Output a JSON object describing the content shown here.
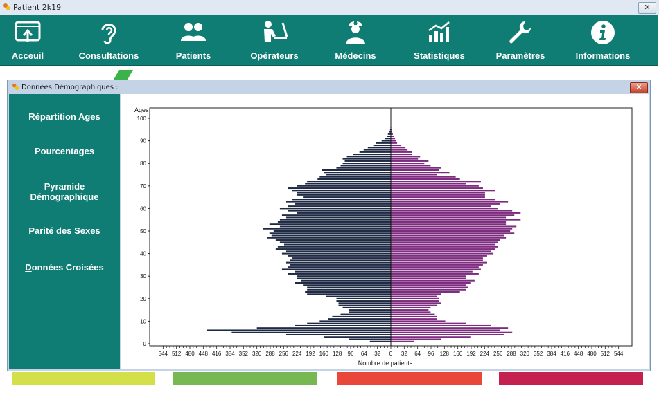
{
  "window": {
    "title": "Patient 2k19",
    "close_glyph": "✕"
  },
  "toolbar": {
    "items": [
      {
        "label": "Acceuil",
        "icon": "home-screen-icon"
      },
      {
        "label": "Consultations",
        "icon": "ear-icon"
      },
      {
        "label": "Patients",
        "icon": "users-icon"
      },
      {
        "label": "Opérateurs",
        "icon": "operator-desk-icon"
      },
      {
        "label": "Médecins",
        "icon": "doctor-icon"
      },
      {
        "label": "Statistiques",
        "icon": "chart-icon"
      },
      {
        "label": "Paramètres",
        "icon": "wrench-icon"
      },
      {
        "label": "Informations",
        "icon": "info-icon"
      }
    ]
  },
  "dialog": {
    "title": "Données Démographiques :",
    "close_glyph": "✕",
    "menu": [
      {
        "label": "Répartition Ages"
      },
      {
        "label": "Pourcentages"
      },
      {
        "label": "Pyramide Démographique"
      },
      {
        "label": "Parité des Sexes"
      },
      {
        "label": "Données Croisées",
        "underline_first": true
      }
    ]
  },
  "colors": {
    "teal": "#0f7d74",
    "male_bar": "#1f2a44",
    "female_bar": "#7d2c7f",
    "strips": [
      "#d4e04a",
      "#77b852",
      "#e8473a",
      "#c4214e"
    ]
  },
  "chart_data": {
    "type": "bar",
    "orientation": "horizontal-pyramid",
    "ylabel": "Âges",
    "xlabel": "Nombre de patients",
    "ylim": [
      0,
      105
    ],
    "y_ticks": [
      0,
      10,
      20,
      30,
      40,
      50,
      60,
      70,
      80,
      90,
      100
    ],
    "xlim": [
      -576,
      576
    ],
    "x_tick_labels": [
      544,
      512,
      480,
      448,
      416,
      384,
      352,
      320,
      288,
      256,
      224,
      192,
      160,
      128,
      96,
      64,
      32,
      0,
      32,
      64,
      96,
      128,
      160,
      192,
      224,
      256,
      288,
      320,
      352,
      384,
      416,
      448,
      480,
      512,
      544
    ],
    "x_tick_values": [
      -544,
      -512,
      -480,
      -448,
      -416,
      -384,
      -352,
      -320,
      -288,
      -256,
      -224,
      -192,
      -160,
      -128,
      -96,
      -64,
      -32,
      0,
      32,
      64,
      96,
      128,
      160,
      192,
      224,
      256,
      288,
      320,
      352,
      384,
      416,
      448,
      480,
      512,
      544
    ],
    "ages": [
      1,
      2,
      3,
      4,
      5,
      6,
      7,
      8,
      9,
      10,
      11,
      12,
      13,
      14,
      15,
      16,
      17,
      18,
      19,
      20,
      21,
      22,
      23,
      24,
      25,
      26,
      27,
      28,
      29,
      30,
      31,
      32,
      33,
      34,
      35,
      36,
      37,
      38,
      39,
      40,
      41,
      42,
      43,
      44,
      45,
      46,
      47,
      48,
      49,
      50,
      51,
      52,
      53,
      54,
      55,
      56,
      57,
      58,
      59,
      60,
      61,
      62,
      63,
      64,
      65,
      66,
      67,
      68,
      69,
      70,
      71,
      72,
      73,
      74,
      75,
      76,
      77,
      78,
      79,
      80,
      81,
      82,
      83,
      84,
      85,
      86,
      87,
      88,
      89,
      90,
      91,
      92,
      93,
      94,
      95,
      96
    ],
    "series": [
      {
        "values": [
          50,
          100,
          160,
          250,
          380,
          440,
          320,
          230,
          200,
          170,
          150,
          140,
          120,
          100,
          100,
          115,
          125,
          125,
          130,
          130,
          155,
          200,
          205,
          200,
          200,
          210,
          230,
          215,
          225,
          225,
          245,
          230,
          260,
          245,
          240,
          250,
          240,
          235,
          245,
          260,
          250,
          275,
          270,
          255,
          265,
          275,
          295,
          285,
          290,
          280,
          305,
          265,
          290,
          270,
          265,
          250,
          260,
          225,
          245,
          265,
          245,
          230,
          250,
          235,
          210,
          225,
          225,
          235,
          245,
          225,
          205,
          200,
          175,
          170,
          155,
          160,
          165,
          130,
          120,
          115,
          110,
          115,
          105,
          90,
          75,
          65,
          55,
          42,
          35,
          22,
          15,
          10,
          7,
          4,
          2,
          1
        ]
      },
      {
        "values": [
          55,
          120,
          190,
          270,
          290,
          260,
          280,
          240,
          180,
          130,
          110,
          110,
          105,
          95,
          90,
          95,
          110,
          120,
          115,
          115,
          110,
          120,
          165,
          180,
          185,
          180,
          190,
          200,
          180,
          180,
          210,
          195,
          215,
          210,
          220,
          230,
          220,
          220,
          230,
          245,
          240,
          250,
          255,
          250,
          255,
          260,
          275,
          270,
          295,
          285,
          290,
          300,
          275,
          275,
          310,
          275,
          295,
          310,
          290,
          255,
          240,
          260,
          280,
          250,
          225,
          225,
          225,
          250,
          220,
          210,
          180,
          215,
          165,
          155,
          110,
          140,
          115,
          120,
          95,
          80,
          90,
          65,
          70,
          50,
          50,
          40,
          35,
          25,
          15,
          12,
          10,
          8,
          5,
          3,
          2,
          1
        ]
      }
    ]
  }
}
